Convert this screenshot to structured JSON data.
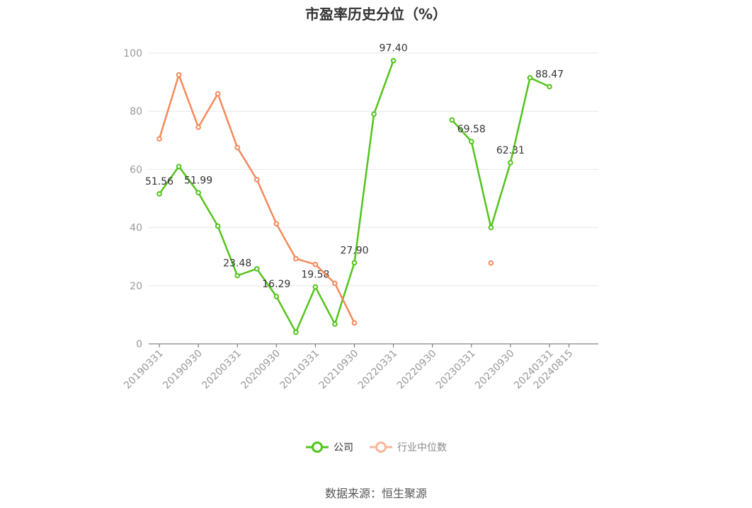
{
  "title": "市盈率历史分位（%）",
  "source": "数据来源：恒生聚源",
  "legend": {
    "company": "公司",
    "industry": "行业中位数"
  },
  "colors": {
    "company": "#52c41a",
    "industry": "#f5895a",
    "industry_legend": "#f9b79b",
    "grid": "#e3e6ee",
    "axis": "#666666",
    "tick_label": "#999999",
    "data_label": "#333333"
  },
  "chart_data": {
    "type": "line",
    "title": "市盈率历史分位（%）",
    "xlabel": "",
    "ylabel": "",
    "ylim": [
      0,
      100
    ],
    "yticks": [
      0,
      20,
      40,
      60,
      80,
      100
    ],
    "grid": true,
    "legend_position": "bottom",
    "x_tick_labels": [
      "20190331",
      "20190930",
      "20200331",
      "20200930",
      "20210331",
      "20210930",
      "20220331",
      "20220930",
      "20230331",
      "20230930",
      "20240331",
      "20240815"
    ],
    "x": [
      "20190331",
      "20190630",
      "20190930",
      "20191231",
      "20200331",
      "20200630",
      "20200930",
      "20201231",
      "20210331",
      "20210630",
      "20210930",
      "20211231",
      "20220331",
      "20220630",
      "20220930",
      "20221231",
      "20230331",
      "20230630",
      "20230930",
      "20231231",
      "20240331",
      "20240815"
    ],
    "series": [
      {
        "name": "公司",
        "values": [
          51.56,
          61,
          51.99,
          40.5,
          23.48,
          25.8,
          16.29,
          4,
          19.58,
          6.8,
          27.9,
          79,
          97.4,
          null,
          null,
          77,
          69.58,
          40,
          62.31,
          91.5,
          88.47,
          null
        ],
        "labels": [
          "51.56",
          null,
          "51.99",
          null,
          "23.48",
          null,
          "16.29",
          null,
          "19.58",
          null,
          "27.90",
          null,
          "97.40",
          null,
          null,
          null,
          "69.58",
          null,
          "62.31",
          null,
          "88.47",
          null
        ]
      },
      {
        "name": "行业中位数",
        "values": [
          70.5,
          92.5,
          74.5,
          86,
          67.5,
          56.5,
          41.3,
          29.3,
          27.3,
          20.8,
          7.2,
          null,
          null,
          null,
          null,
          null,
          null,
          27.8,
          null,
          null,
          null,
          null
        ],
        "labels": []
      }
    ]
  }
}
